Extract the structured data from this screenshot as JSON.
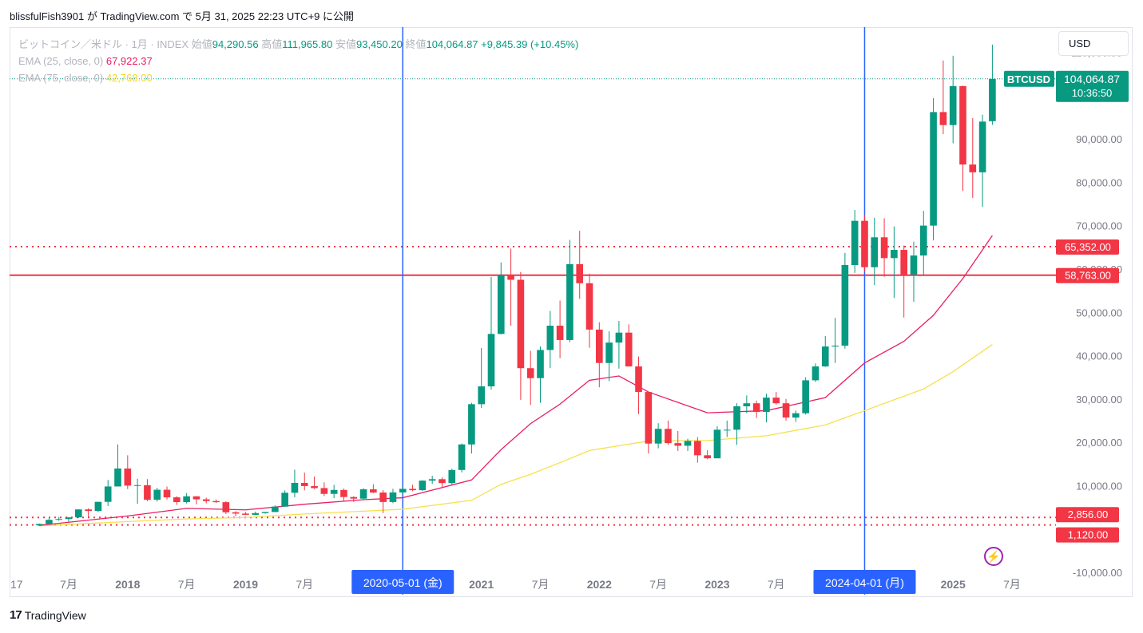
{
  "header": {
    "publish_line": "blissfulFish3901 が TradingView.com で 5月 31, 2025 22:23 UTC+9 に公開"
  },
  "legend": {
    "symbol": "ビットコイン／米ドル · 1月 · INDEX",
    "o_label": "始値",
    "o_value": "94,290.56",
    "h_label": "高値",
    "h_value": "111,965.80",
    "l_label": "安値",
    "l_value": "93,450.20",
    "c_label": "終値",
    "c_value": "104,064.87",
    "change": "+9,845.39 (+10.45%)",
    "ema25_label": "EMA (25, close, 0)",
    "ema25_value": "67,922.37",
    "ema75_label": "EMA (75, close, 0)",
    "ema75_value": "42,768.00"
  },
  "currency_button": "USD",
  "footer": {
    "brand": "TradingView",
    "logo_text": "17"
  },
  "colors": {
    "up": "#089981",
    "down": "#f23645",
    "ema25": "#e91e63",
    "ema75": "#f5e14a",
    "vline": "#2962ff",
    "hline": "#f23645",
    "grid_dotted": "#089981"
  },
  "chart_data": {
    "type": "candlestick",
    "ylim": [
      -10000,
      116000
    ],
    "y_ticks": [
      -10000,
      10000,
      20000,
      30000,
      40000,
      50000,
      60000,
      70000,
      80000,
      90000,
      110000
    ],
    "y_tick_labels": [
      "-10,000.00",
      "10,000.00",
      "20,000.00",
      "30,000.00",
      "40,000.00",
      "50,000.00",
      "60,000.00",
      "70,000.00",
      "80,000.00",
      "90,000.00",
      "110,000.00"
    ],
    "x_start": "2017-04",
    "x_end": "2025-09",
    "x_labels": [
      {
        "date": "2017-01",
        "text": "17"
      },
      {
        "date": "2017-07",
        "text": "7月"
      },
      {
        "date": "2018-01",
        "text": "2018"
      },
      {
        "date": "2018-07",
        "text": "7月"
      },
      {
        "date": "2019-01",
        "text": "2019"
      },
      {
        "date": "2019-07",
        "text": "7月"
      },
      {
        "date": "2021-01",
        "text": "2021"
      },
      {
        "date": "2021-07",
        "text": "7月"
      },
      {
        "date": "2022-01",
        "text": "2022"
      },
      {
        "date": "2022-07",
        "text": "7月"
      },
      {
        "date": "2023-01",
        "text": "2023"
      },
      {
        "date": "2023-07",
        "text": "7月"
      },
      {
        "date": "2025-01",
        "text": "2025"
      },
      {
        "date": "2025-07",
        "text": "7月"
      }
    ],
    "vertical_markers": [
      {
        "date": "2020-05",
        "label": "2020-05-01 (金)"
      },
      {
        "date": "2024-04",
        "label": "2024-04-01 (月)"
      }
    ],
    "horizontal_lines": [
      {
        "value": 58763,
        "label": "58,763.00",
        "style": "solid"
      },
      {
        "value": 65352,
        "label": "65,352.00",
        "style": "dotted"
      },
      {
        "value": 2856,
        "label": "2,856.00",
        "style": "dotted"
      },
      {
        "value": 1120,
        "label": "1,120.00",
        "style": "dotted"
      }
    ],
    "last_price": {
      "symbol": "BTCUSD",
      "value": 104064.87,
      "label": "104,064.87",
      "countdown": "10:36:50"
    },
    "candles": [
      {
        "t": "2017-04",
        "o": 1080,
        "h": 1440,
        "l": 1050,
        "c": 1350
      },
      {
        "t": "2017-05",
        "o": 1350,
        "h": 2700,
        "l": 1350,
        "c": 2300
      },
      {
        "t": "2017-06",
        "o": 2300,
        "h": 2990,
        "l": 2100,
        "c": 2480
      },
      {
        "t": "2017-07",
        "o": 2480,
        "h": 2900,
        "l": 1830,
        "c": 2870
      },
      {
        "t": "2017-08",
        "o": 2870,
        "h": 4750,
        "l": 2700,
        "c": 4700
      },
      {
        "t": "2017-09",
        "o": 4700,
        "h": 4980,
        "l": 2970,
        "c": 4340
      },
      {
        "t": "2017-10",
        "o": 4340,
        "h": 6450,
        "l": 4110,
        "c": 6450
      },
      {
        "t": "2017-11",
        "o": 6450,
        "h": 11500,
        "l": 5500,
        "c": 10000
      },
      {
        "t": "2017-12",
        "o": 10000,
        "h": 19700,
        "l": 10900,
        "c": 14150
      },
      {
        "t": "2018-01",
        "o": 14150,
        "h": 17200,
        "l": 9400,
        "c": 10200
      },
      {
        "t": "2018-02",
        "o": 10200,
        "h": 11800,
        "l": 6000,
        "c": 10300
      },
      {
        "t": "2018-03",
        "o": 10300,
        "h": 11700,
        "l": 6600,
        "c": 6930
      },
      {
        "t": "2018-04",
        "o": 6930,
        "h": 9700,
        "l": 6500,
        "c": 9240
      },
      {
        "t": "2018-05",
        "o": 9240,
        "h": 9990,
        "l": 7000,
        "c": 7490
      },
      {
        "t": "2018-06",
        "o": 7490,
        "h": 7760,
        "l": 5760,
        "c": 6390
      },
      {
        "t": "2018-07",
        "o": 6390,
        "h": 8480,
        "l": 6070,
        "c": 7730
      },
      {
        "t": "2018-08",
        "o": 7730,
        "h": 7740,
        "l": 5880,
        "c": 7030
      },
      {
        "t": "2018-09",
        "o": 7030,
        "h": 7400,
        "l": 6100,
        "c": 6630
      },
      {
        "t": "2018-10",
        "o": 6630,
        "h": 7000,
        "l": 6200,
        "c": 6370
      },
      {
        "t": "2018-11",
        "o": 6370,
        "h": 6600,
        "l": 3650,
        "c": 4040
      },
      {
        "t": "2018-12",
        "o": 4040,
        "h": 4310,
        "l": 3150,
        "c": 3740
      },
      {
        "t": "2019-01",
        "o": 3740,
        "h": 4110,
        "l": 3400,
        "c": 3460
      },
      {
        "t": "2019-02",
        "o": 3460,
        "h": 4200,
        "l": 3380,
        "c": 3850
      },
      {
        "t": "2019-03",
        "o": 3850,
        "h": 4130,
        "l": 3730,
        "c": 4110
      },
      {
        "t": "2019-04",
        "o": 4110,
        "h": 5630,
        "l": 4080,
        "c": 5350
      },
      {
        "t": "2019-05",
        "o": 5350,
        "h": 9100,
        "l": 5330,
        "c": 8550
      },
      {
        "t": "2019-06",
        "o": 8550,
        "h": 13880,
        "l": 7500,
        "c": 10820
      },
      {
        "t": "2019-07",
        "o": 10820,
        "h": 13200,
        "l": 9100,
        "c": 10090
      },
      {
        "t": "2019-08",
        "o": 10090,
        "h": 12300,
        "l": 9400,
        "c": 9630
      },
      {
        "t": "2019-09",
        "o": 9630,
        "h": 10950,
        "l": 7800,
        "c": 8290
      },
      {
        "t": "2019-10",
        "o": 8290,
        "h": 10370,
        "l": 7300,
        "c": 9200
      },
      {
        "t": "2019-11",
        "o": 9200,
        "h": 9500,
        "l": 6500,
        "c": 7560
      },
      {
        "t": "2019-12",
        "o": 7560,
        "h": 7750,
        "l": 6430,
        "c": 7190
      },
      {
        "t": "2020-01",
        "o": 7190,
        "h": 9590,
        "l": 6880,
        "c": 9350
      },
      {
        "t": "2020-02",
        "o": 9350,
        "h": 10500,
        "l": 8450,
        "c": 8600
      },
      {
        "t": "2020-03",
        "o": 8600,
        "h": 9190,
        "l": 3850,
        "c": 6420
      },
      {
        "t": "2020-04",
        "o": 6420,
        "h": 9460,
        "l": 6150,
        "c": 8630
      },
      {
        "t": "2020-05",
        "o": 8630,
        "h": 10060,
        "l": 8130,
        "c": 9450
      },
      {
        "t": "2020-06",
        "o": 9450,
        "h": 10400,
        "l": 8900,
        "c": 9140
      },
      {
        "t": "2020-07",
        "o": 9140,
        "h": 11450,
        "l": 8970,
        "c": 11350
      },
      {
        "t": "2020-08",
        "o": 11350,
        "h": 12480,
        "l": 10600,
        "c": 11680
      },
      {
        "t": "2020-09",
        "o": 11680,
        "h": 12100,
        "l": 9900,
        "c": 10780
      },
      {
        "t": "2020-10",
        "o": 10780,
        "h": 14100,
        "l": 10400,
        "c": 13800
      },
      {
        "t": "2020-11",
        "o": 13800,
        "h": 19900,
        "l": 13250,
        "c": 19700
      },
      {
        "t": "2020-12",
        "o": 19700,
        "h": 29300,
        "l": 17600,
        "c": 28990
      },
      {
        "t": "2021-01",
        "o": 28990,
        "h": 41950,
        "l": 28100,
        "c": 33100
      },
      {
        "t": "2021-02",
        "o": 33100,
        "h": 58350,
        "l": 32350,
        "c": 45200
      },
      {
        "t": "2021-03",
        "o": 45200,
        "h": 61700,
        "l": 45100,
        "c": 58800
      },
      {
        "t": "2021-04",
        "o": 58800,
        "h": 64900,
        "l": 47100,
        "c": 57700
      },
      {
        "t": "2021-05",
        "o": 57700,
        "h": 59500,
        "l": 30000,
        "c": 37300
      },
      {
        "t": "2021-06",
        "o": 37300,
        "h": 41300,
        "l": 28800,
        "c": 35000
      },
      {
        "t": "2021-07",
        "o": 35000,
        "h": 42300,
        "l": 29300,
        "c": 41500
      },
      {
        "t": "2021-08",
        "o": 41500,
        "h": 50500,
        "l": 37300,
        "c": 47100
      },
      {
        "t": "2021-09",
        "o": 47100,
        "h": 52900,
        "l": 39600,
        "c": 43800
      },
      {
        "t": "2021-10",
        "o": 43800,
        "h": 66900,
        "l": 43300,
        "c": 61300
      },
      {
        "t": "2021-11",
        "o": 61300,
        "h": 69000,
        "l": 53300,
        "c": 56900
      },
      {
        "t": "2021-12",
        "o": 56900,
        "h": 59100,
        "l": 42000,
        "c": 46200
      },
      {
        "t": "2022-01",
        "o": 46200,
        "h": 47900,
        "l": 32900,
        "c": 38500
      },
      {
        "t": "2022-02",
        "o": 38500,
        "h": 45800,
        "l": 34300,
        "c": 43200
      },
      {
        "t": "2022-03",
        "o": 43200,
        "h": 48200,
        "l": 37200,
        "c": 45500
      },
      {
        "t": "2022-04",
        "o": 45500,
        "h": 47400,
        "l": 37700,
        "c": 37700
      },
      {
        "t": "2022-05",
        "o": 37700,
        "h": 40000,
        "l": 26700,
        "c": 31800
      },
      {
        "t": "2022-06",
        "o": 31800,
        "h": 31900,
        "l": 17600,
        "c": 19900
      },
      {
        "t": "2022-07",
        "o": 19900,
        "h": 24600,
        "l": 18800,
        "c": 23300
      },
      {
        "t": "2022-08",
        "o": 23300,
        "h": 25200,
        "l": 19600,
        "c": 20000
      },
      {
        "t": "2022-09",
        "o": 20000,
        "h": 22800,
        "l": 18200,
        "c": 19400
      },
      {
        "t": "2022-10",
        "o": 19400,
        "h": 21000,
        "l": 18200,
        "c": 20500
      },
      {
        "t": "2022-11",
        "o": 20500,
        "h": 21400,
        "l": 15500,
        "c": 17200
      },
      {
        "t": "2022-12",
        "o": 17200,
        "h": 18400,
        "l": 16300,
        "c": 16500
      },
      {
        "t": "2023-01",
        "o": 16500,
        "h": 23900,
        "l": 16500,
        "c": 23100
      },
      {
        "t": "2023-02",
        "o": 23100,
        "h": 25200,
        "l": 21400,
        "c": 23100
      },
      {
        "t": "2023-03",
        "o": 23100,
        "h": 29200,
        "l": 19600,
        "c": 28500
      },
      {
        "t": "2023-04",
        "o": 28500,
        "h": 31000,
        "l": 26900,
        "c": 29200
      },
      {
        "t": "2023-05",
        "o": 29200,
        "h": 29800,
        "l": 25800,
        "c": 27200
      },
      {
        "t": "2023-06",
        "o": 27200,
        "h": 31400,
        "l": 24800,
        "c": 30500
      },
      {
        "t": "2023-07",
        "o": 30500,
        "h": 31800,
        "l": 28900,
        "c": 29200
      },
      {
        "t": "2023-08",
        "o": 29200,
        "h": 30200,
        "l": 25200,
        "c": 25900
      },
      {
        "t": "2023-09",
        "o": 25900,
        "h": 27500,
        "l": 24900,
        "c": 26900
      },
      {
        "t": "2023-10",
        "o": 26900,
        "h": 35200,
        "l": 26600,
        "c": 34500
      },
      {
        "t": "2023-11",
        "o": 34500,
        "h": 38400,
        "l": 34100,
        "c": 37700
      },
      {
        "t": "2023-12",
        "o": 37700,
        "h": 44700,
        "l": 37600,
        "c": 42300
      },
      {
        "t": "2024-01",
        "o": 42300,
        "h": 48900,
        "l": 38500,
        "c": 42500
      },
      {
        "t": "2024-02",
        "o": 42500,
        "h": 63900,
        "l": 41800,
        "c": 61100
      },
      {
        "t": "2024-03",
        "o": 61100,
        "h": 73800,
        "l": 59300,
        "c": 71300
      },
      {
        "t": "2024-04",
        "o": 71300,
        "h": 72700,
        "l": 59700,
        "c": 60600
      },
      {
        "t": "2024-05",
        "o": 60600,
        "h": 72000,
        "l": 56500,
        "c": 67500
      },
      {
        "t": "2024-06",
        "o": 67500,
        "h": 71900,
        "l": 58400,
        "c": 62700
      },
      {
        "t": "2024-07",
        "o": 62700,
        "h": 70000,
        "l": 53500,
        "c": 64600
      },
      {
        "t": "2024-08",
        "o": 64600,
        "h": 65600,
        "l": 49000,
        "c": 58900
      },
      {
        "t": "2024-09",
        "o": 58900,
        "h": 66500,
        "l": 52600,
        "c": 63300
      },
      {
        "t": "2024-10",
        "o": 63300,
        "h": 73600,
        "l": 58900,
        "c": 70200
      },
      {
        "t": "2024-11",
        "o": 70200,
        "h": 99600,
        "l": 66800,
        "c": 96400
      },
      {
        "t": "2024-12",
        "o": 96400,
        "h": 108300,
        "l": 91300,
        "c": 93400
      },
      {
        "t": "2025-01",
        "o": 93400,
        "h": 109400,
        "l": 89200,
        "c": 102400
      },
      {
        "t": "2025-02",
        "o": 102400,
        "h": 102500,
        "l": 78200,
        "c": 84300
      },
      {
        "t": "2025-03",
        "o": 84300,
        "h": 95000,
        "l": 76600,
        "c": 82500
      },
      {
        "t": "2025-04",
        "o": 82500,
        "h": 95800,
        "l": 74500,
        "c": 94200
      },
      {
        "t": "2025-05",
        "o": 94290.56,
        "h": 111965.8,
        "l": 93450.2,
        "c": 104064.87
      }
    ],
    "ema25": [
      {
        "t": "2017-04",
        "v": 1000
      },
      {
        "t": "2018-01",
        "v": 3200
      },
      {
        "t": "2018-07",
        "v": 4950
      },
      {
        "t": "2019-01",
        "v": 4600
      },
      {
        "t": "2019-07",
        "v": 5900
      },
      {
        "t": "2020-01",
        "v": 6950
      },
      {
        "t": "2020-05",
        "v": 7400
      },
      {
        "t": "2020-12",
        "v": 11500
      },
      {
        "t": "2021-03",
        "v": 18500
      },
      {
        "t": "2021-06",
        "v": 24500
      },
      {
        "t": "2021-09",
        "v": 29000
      },
      {
        "t": "2021-12",
        "v": 34500
      },
      {
        "t": "2022-03",
        "v": 35500
      },
      {
        "t": "2022-06",
        "v": 31800
      },
      {
        "t": "2022-12",
        "v": 27000
      },
      {
        "t": "2023-06",
        "v": 27500
      },
      {
        "t": "2023-12",
        "v": 30500
      },
      {
        "t": "2024-04",
        "v": 38500
      },
      {
        "t": "2024-08",
        "v": 43500
      },
      {
        "t": "2024-11",
        "v": 49500
      },
      {
        "t": "2025-02",
        "v": 58000
      },
      {
        "t": "2025-05",
        "v": 67922.37
      }
    ],
    "ema75": [
      {
        "t": "2017-04",
        "v": 900
      },
      {
        "t": "2018-01",
        "v": 1900
      },
      {
        "t": "2018-07",
        "v": 2500
      },
      {
        "t": "2019-01",
        "v": 2850
      },
      {
        "t": "2019-07",
        "v": 3650
      },
      {
        "t": "2020-01",
        "v": 4300
      },
      {
        "t": "2020-05",
        "v": 4750
      },
      {
        "t": "2020-12",
        "v": 6800
      },
      {
        "t": "2021-03",
        "v": 10500
      },
      {
        "t": "2021-06",
        "v": 12800
      },
      {
        "t": "2021-09",
        "v": 15500
      },
      {
        "t": "2021-12",
        "v": 18300
      },
      {
        "t": "2022-06",
        "v": 20500
      },
      {
        "t": "2022-12",
        "v": 20600
      },
      {
        "t": "2023-06",
        "v": 21700
      },
      {
        "t": "2023-12",
        "v": 24200
      },
      {
        "t": "2024-04",
        "v": 27500
      },
      {
        "t": "2024-10",
        "v": 32500
      },
      {
        "t": "2025-01",
        "v": 36500
      },
      {
        "t": "2025-05",
        "v": 42768
      }
    ]
  }
}
